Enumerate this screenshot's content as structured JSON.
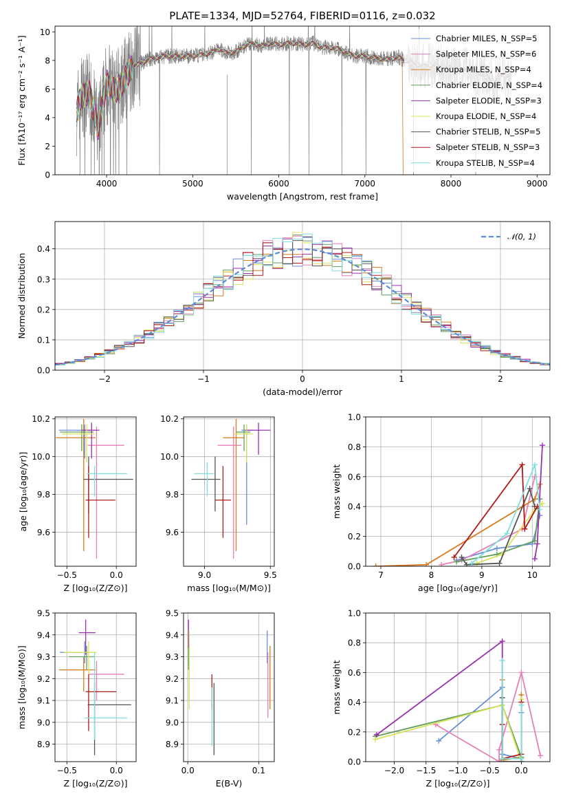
{
  "chart_data": [
    {
      "type": "line",
      "title": "PLATE=1334, MJD=52764, FIBERID=0116, z=0.032",
      "xlabel": "wavelength [Angstrom, rest frame]",
      "ylabel": "Flux [fλ10⁻¹⁷ erg cm⁻² s⁻¹ A⁻¹]",
      "xlim": [
        3400,
        9150
      ],
      "ylim": [
        0,
        10.4
      ],
      "xticks": [
        "4000",
        "5000",
        "6000",
        "7000",
        "8000",
        "9000"
      ],
      "yticks": [
        "0",
        "2",
        "4",
        "6",
        "8",
        "10"
      ],
      "grid": false,
      "legend_position": "top-right",
      "series": [
        {
          "name": "Chabrier MILES, N_SSP=5",
          "color": "#6a8fd9"
        },
        {
          "name": "Salpeter MILES, N_SSP=6",
          "color": "#e57fb5"
        },
        {
          "name": "Kroupa MILES, N_SSP=4",
          "color": "#d97a1f"
        },
        {
          "name": "Chabrier ELODIE, N_SSP=4",
          "color": "#5f9e5a"
        },
        {
          "name": "Salpeter ELODIE, N_SSP=3",
          "color": "#9a2fb0"
        },
        {
          "name": "Kroupa ELODIE, N_SSP=4",
          "color": "#d8e35a"
        },
        {
          "name": "Chabrier STELIB, N_SSP=5",
          "color": "#555555"
        },
        {
          "name": "Salpeter STELIB, N_SSP=3",
          "color": "#b01818"
        },
        {
          "name": "Kroupa STELIB, N_SSP=4",
          "color": "#7fdede"
        }
      ],
      "data_curve": {
        "color": "#808080"
      },
      "model_shape": {
        "x": [
          3650,
          3700,
          3800,
          3900,
          4000,
          4100,
          4200,
          4300,
          4400,
          4500,
          4600,
          4700,
          4800,
          4900,
          5000,
          5100,
          5200,
          5300,
          5400,
          5500,
          5600,
          5700,
          5800,
          5900,
          6000,
          6100,
          6200,
          6300,
          6400,
          6500,
          6600,
          6700,
          6800,
          6900,
          7000,
          7100,
          7200,
          7300,
          7400,
          7500,
          7600,
          7700,
          7800,
          7900,
          8000,
          8100,
          8200,
          8300,
          8400,
          8500,
          8600,
          8700
        ],
        "y": [
          4.3,
          5.5,
          5.8,
          3.2,
          6.5,
          5.8,
          6.5,
          7.6,
          7.8,
          8.1,
          8.2,
          8.3,
          8.3,
          8.3,
          8.3,
          8.4,
          8.5,
          8.8,
          8.5,
          8.6,
          9.0,
          9.2,
          9.0,
          9.2,
          9.1,
          9.2,
          9.2,
          9.1,
          9.2,
          8.9,
          8.9,
          8.8,
          8.5,
          8.3,
          8.3,
          8.2,
          8.1,
          8.1,
          8.2,
          7.9,
          7.7,
          7.6,
          7.7,
          7.5,
          7.5,
          7.3,
          7.4,
          7.2,
          6.9,
          6.5,
          7.0,
          6.9
        ]
      }
    },
    {
      "type": "line",
      "title": "",
      "xlabel": "(data-model)/error",
      "ylabel": "Normed distribution",
      "xlim": [
        -2.5,
        2.5
      ],
      "ylim": [
        0,
        0.49
      ],
      "xticks": [
        "−2",
        "−1",
        "0",
        "1",
        "2"
      ],
      "yticks": [
        "0.0",
        "0.1",
        "0.2",
        "0.3",
        "0.4"
      ],
      "grid": true,
      "legend_position": "top-right",
      "reference": {
        "name": "𝒩(0, 1)",
        "color": "#5b8bd9"
      },
      "bin_width": 0.1
    },
    {
      "type": "scatter",
      "xlabel": "Z [log₁₀(Z/Z⊙)]",
      "ylabel": "age  [log₁₀(age/yr)]",
      "xlim": [
        -0.62,
        0.2
      ],
      "ylim": [
        9.42,
        10.21
      ],
      "xticks": [
        "−0.5",
        "0.0"
      ],
      "yticks": [
        "9.6",
        "9.8",
        "10.0",
        "10.2"
      ],
      "grid": true,
      "points": [
        {
          "x": -0.32,
          "xerr": [
            0.26,
            0.06
          ],
          "y": 10.14,
          "yerr": [
            0.15,
            0.03
          ],
          "color": "#6a8fd9"
        },
        {
          "x": -0.2,
          "xerr": [
            0.09,
            0.28
          ],
          "y": 10.06,
          "yerr": [
            0.6,
            0.1
          ],
          "color": "#e57fb5"
        },
        {
          "x": -0.33,
          "xerr": [
            0.28,
            0.12
          ],
          "y": 10.1,
          "yerr": [
            0.6,
            0.1
          ],
          "color": "#d97a1f"
        },
        {
          "x": -0.35,
          "xerr": [
            0.22,
            0.12
          ],
          "y": 10.13,
          "yerr": [
            0.1,
            0.04
          ],
          "color": "#5f9e5a"
        },
        {
          "x": -0.25,
          "xerr": [
            0.1,
            0.08
          ],
          "y": 10.14,
          "yerr": [
            0.15,
            0.04
          ],
          "color": "#9a2fb0"
        },
        {
          "x": -0.3,
          "xerr": [
            0.25,
            0.08
          ],
          "y": 10.12,
          "yerr": [
            0.15,
            0.05
          ],
          "color": "#d8e35a"
        },
        {
          "x": -0.28,
          "xerr": [
            0.05,
            0.45
          ],
          "y": 9.88,
          "yerr": [
            0.18,
            0.12
          ],
          "color": "#555555"
        },
        {
          "x": -0.28,
          "xerr": [
            0.03,
            0.27
          ],
          "y": 9.77,
          "yerr": [
            0.2,
            0.18
          ],
          "color": "#b01818"
        },
        {
          "x": -0.22,
          "xerr": [
            0.08,
            0.33
          ],
          "y": 9.91,
          "yerr": [
            0.12,
            0.04
          ],
          "color": "#7fdede"
        }
      ]
    },
    {
      "type": "scatter",
      "xlabel": "mass [log₁₀(M/M⊙)]",
      "ylabel": "",
      "xlim": [
        8.84,
        9.53
      ],
      "ylim": [
        9.42,
        10.21
      ],
      "xticks": [
        "9.0",
        "9.5"
      ],
      "yticks": [
        "9.6",
        "9.8",
        "10.0",
        "10.2"
      ],
      "grid": true,
      "points": [
        {
          "x": 9.32,
          "xerr": [
            0.04,
            0.05
          ],
          "y": 10.14,
          "yerr": [
            0.5,
            0.03
          ],
          "color": "#6a8fd9"
        },
        {
          "x": 9.22,
          "xerr": [
            0.12,
            0.06
          ],
          "y": 10.06,
          "yerr": [
            0.6,
            0.1
          ],
          "color": "#e57fb5"
        },
        {
          "x": 9.24,
          "xerr": [
            0.1,
            0.06
          ],
          "y": 10.1,
          "yerr": [
            0.6,
            0.1
          ],
          "color": "#d97a1f"
        },
        {
          "x": 9.3,
          "xerr": [
            0.06,
            0.05
          ],
          "y": 10.13,
          "yerr": [
            0.1,
            0.04
          ],
          "color": "#5f9e5a"
        },
        {
          "x": 9.41,
          "xerr": [
            0.1,
            0.09
          ],
          "y": 10.14,
          "yerr": [
            0.13,
            0.04
          ],
          "color": "#9a2fb0"
        },
        {
          "x": 9.32,
          "xerr": [
            0.1,
            0.05
          ],
          "y": 10.12,
          "yerr": [
            0.15,
            0.05
          ],
          "color": "#d8e35a"
        },
        {
          "x": 9.08,
          "xerr": [
            0.18,
            0.04
          ],
          "y": 9.88,
          "yerr": [
            0.17,
            0.12
          ],
          "color": "#555555"
        },
        {
          "x": 9.14,
          "xerr": [
            0.06,
            0.06
          ],
          "y": 9.77,
          "yerr": [
            0.2,
            0.18
          ],
          "color": "#b01818"
        },
        {
          "x": 9.02,
          "xerr": [
            0.1,
            0.05
          ],
          "y": 9.91,
          "yerr": [
            0.12,
            0.06
          ],
          "color": "#7fdede"
        }
      ]
    },
    {
      "type": "line",
      "xlabel": "age  [log₁₀(age/yr)]",
      "ylabel": "mass weight",
      "xlim": [
        6.7,
        10.35
      ],
      "ylim": [
        0,
        1.0
      ],
      "xticks": [
        "7",
        "8",
        "9",
        "10"
      ],
      "yticks": [
        "0.0",
        "0.2",
        "0.4",
        "0.6",
        "0.8",
        "1.0"
      ],
      "grid": true,
      "series": [
        {
          "color": "#6a8fd9",
          "x": [
            8.5,
            9.3,
            10.0,
            10.15
          ],
          "y": [
            0.04,
            0.12,
            0.15,
            0.34
          ]
        },
        {
          "color": "#e57fb5",
          "x": [
            8.2,
            8.6,
            9.8,
            10.05
          ],
          "y": [
            0.01,
            0.04,
            0.25,
            0.6
          ]
        },
        {
          "color": "#d97a1f",
          "x": [
            6.9,
            7.9,
            10.05,
            10.15
          ],
          "y": [
            0.0,
            0.01,
            0.45,
            0.55
          ]
        },
        {
          "color": "#5f9e5a",
          "x": [
            8.5,
            9.3,
            10.05,
            10.15
          ],
          "y": [
            0.03,
            0.08,
            0.17,
            0.45
          ]
        },
        {
          "color": "#9a2fb0",
          "x": [
            10.05,
            10.1,
            10.2
          ],
          "y": [
            0.05,
            0.15,
            0.81
          ]
        },
        {
          "color": "#d8e35a",
          "x": [
            8.9,
            9.4,
            10.05,
            10.2
          ],
          "y": [
            0.02,
            0.08,
            0.38,
            0.42
          ]
        },
        {
          "color": "#555555",
          "x": [
            8.6,
            8.7,
            9.35,
            9.95,
            10.05
          ],
          "y": [
            0.06,
            0.01,
            0.02,
            0.52,
            0.4
          ]
        },
        {
          "color": "#b01818",
          "x": [
            8.45,
            9.8,
            9.85,
            10.1
          ],
          "y": [
            0.06,
            0.68,
            0.25,
            0.4
          ]
        },
        {
          "color": "#7fdede",
          "x": [
            8.8,
            9.5,
            10.05,
            10.15
          ],
          "y": [
            0.02,
            0.22,
            0.68,
            0.38
          ]
        }
      ]
    },
    {
      "type": "scatter",
      "xlabel": "Z [log₁₀(Z/Z⊙)]",
      "ylabel": "mass [log₁₀(M/M⊙)]",
      "xlim": [
        -0.62,
        0.2
      ],
      "ylim": [
        8.82,
        9.5
      ],
      "xticks": [
        "−0.5",
        "0.0"
      ],
      "yticks": [
        "8.9",
        "9.0",
        "9.1",
        "9.2",
        "9.3",
        "9.4",
        "9.5"
      ],
      "grid": true,
      "points": [
        {
          "x": -0.32,
          "xerr": [
            0.25,
            0.05
          ],
          "y": 9.32,
          "yerr": [
            0.05,
            0.05
          ],
          "color": "#6a8fd9"
        },
        {
          "x": -0.2,
          "xerr": [
            0.08,
            0.28
          ],
          "y": 9.22,
          "yerr": [
            0.12,
            0.06
          ],
          "color": "#e57fb5"
        },
        {
          "x": -0.33,
          "xerr": [
            0.25,
            0.12
          ],
          "y": 9.24,
          "yerr": [
            0.1,
            0.06
          ],
          "color": "#d97a1f"
        },
        {
          "x": -0.3,
          "xerr": [
            0.18,
            0.08
          ],
          "y": 9.3,
          "yerr": [
            0.06,
            0.05
          ],
          "color": "#5f9e5a"
        },
        {
          "x": -0.31,
          "xerr": [
            0.07,
            0.1
          ],
          "y": 9.41,
          "yerr": [
            0.1,
            0.06
          ],
          "color": "#9a2fb0"
        },
        {
          "x": -0.28,
          "xerr": [
            0.25,
            0.08
          ],
          "y": 9.32,
          "yerr": [
            0.1,
            0.05
          ],
          "color": "#d8e35a"
        },
        {
          "x": -0.22,
          "xerr": [
            0.07,
            0.37
          ],
          "y": 9.08,
          "yerr": [
            0.23,
            0.1
          ],
          "color": "#555555"
        },
        {
          "x": -0.28,
          "xerr": [
            0.03,
            0.28
          ],
          "y": 9.14,
          "yerr": [
            0.18,
            0.08
          ],
          "color": "#b01818"
        },
        {
          "x": -0.22,
          "xerr": [
            0.1,
            0.33
          ],
          "y": 9.02,
          "yerr": [
            0.1,
            0.3
          ],
          "color": "#7fdede"
        }
      ]
    },
    {
      "type": "scatter",
      "xlabel": "E(B-V)",
      "ylabel": "",
      "xlim": [
        -0.006,
        0.122
      ],
      "ylim": [
        8.82,
        9.5
      ],
      "xticks": [
        "0.0",
        "0.1"
      ],
      "yticks": [
        "8.9",
        "9.0",
        "9.1",
        "9.2",
        "9.3",
        "9.4",
        "9.5"
      ],
      "grid": true,
      "points": [
        {
          "x": 0.112,
          "y": 9.32,
          "yerr": [
            0.05,
            0.1
          ],
          "color": "#6a8fd9"
        },
        {
          "x": 0.113,
          "y": 9.22,
          "yerr": [
            0.2,
            0.1
          ],
          "color": "#e57fb5"
        },
        {
          "x": 0.116,
          "y": 9.24,
          "yerr": [
            0.18,
            0.11
          ],
          "color": "#d97a1f"
        },
        {
          "x": 0.001,
          "y": 9.32,
          "yerr": [
            0.08,
            0.08
          ],
          "color": "#5f9e5a"
        },
        {
          "x": 0.001,
          "y": 9.41,
          "yerr": [
            0.07,
            0.06
          ],
          "color": "#9a2fb0"
        },
        {
          "x": 0.002,
          "y": 9.32,
          "yerr": [
            0.26,
            0.1
          ],
          "color": "#d8e35a"
        },
        {
          "x": 0.037,
          "y": 9.08,
          "yerr": [
            0.23,
            0.1
          ],
          "color": "#555555"
        },
        {
          "x": 0.034,
          "y": 9.14,
          "yerr": [
            0.08,
            0.08
          ],
          "color": "#b01818"
        },
        {
          "x": 0.034,
          "y": 9.02,
          "yerr": [
            0.13,
            0.14
          ],
          "color": "#7fdede"
        }
      ]
    },
    {
      "type": "line",
      "xlabel": "Z [log₁₀(Z/Z⊙)]",
      "ylabel": "mass weight",
      "xlim": [
        -2.45,
        0.45
      ],
      "ylim": [
        0,
        1.0
      ],
      "xticks": [
        "−2.0",
        "−1.5",
        "−1.0",
        "−0.5",
        "0.0"
      ],
      "yticks": [
        "0.0",
        "0.2",
        "0.4",
        "0.6",
        "0.8",
        "1.0"
      ],
      "grid": true,
      "series": [
        {
          "color": "#6a8fd9",
          "x": [
            -1.3,
            -0.3,
            -0.3,
            0.0,
            0.0
          ],
          "y": [
            0.14,
            0.5,
            0.05,
            0.02,
            0.33
          ]
        },
        {
          "color": "#e57fb5",
          "x": [
            -1.35,
            -0.35,
            -0.35,
            0.0,
            0.3
          ],
          "y": [
            0.25,
            0.0,
            0.08,
            0.6,
            0.04
          ]
        },
        {
          "color": "#d97a1f",
          "x": [
            -0.3,
            -0.3,
            0.0,
            0.0
          ],
          "y": [
            0.55,
            0.01,
            0.03,
            0.45
          ]
        },
        {
          "color": "#5f9e5a",
          "x": [
            -2.3,
            -0.3,
            0.0,
            0.0
          ],
          "y": [
            0.17,
            0.38,
            0.03,
            0.4
          ]
        },
        {
          "color": "#9a2fb0",
          "x": [
            -2.28,
            -0.3,
            -0.3
          ],
          "y": [
            0.18,
            0.81,
            0.0
          ]
        },
        {
          "color": "#d8e35a",
          "x": [
            -2.3,
            -0.3,
            0.0,
            0.0
          ],
          "y": [
            0.15,
            0.38,
            0.0,
            0.42
          ]
        },
        {
          "color": "#555555",
          "x": [
            -0.3,
            -0.3,
            0.0,
            0.0
          ],
          "y": [
            0.43,
            0.0,
            0.0,
            0.05
          ]
        },
        {
          "color": "#b01818",
          "x": [
            -0.3,
            -0.3,
            0.0,
            0.0
          ],
          "y": [
            0.25,
            0.02,
            0.05,
            0.4
          ]
        },
        {
          "color": "#7fdede",
          "x": [
            -0.3,
            -0.3,
            0.0,
            0.0
          ],
          "y": [
            0.68,
            0.02,
            0.02,
            0.38
          ]
        }
      ]
    }
  ]
}
